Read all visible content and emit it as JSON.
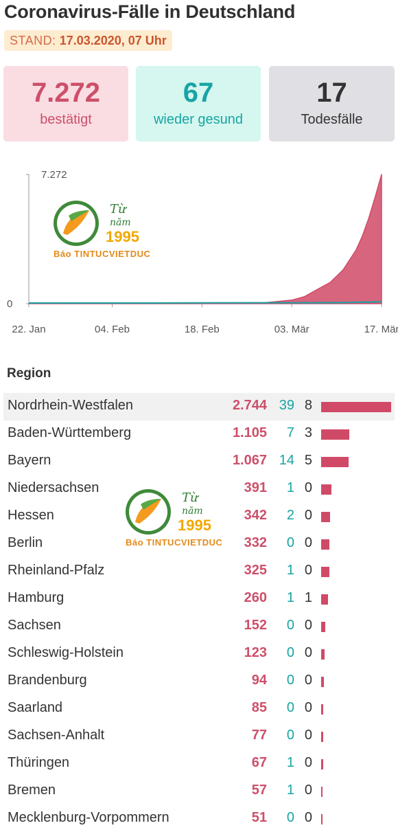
{
  "header": {
    "title": "Coronavirus-Fälle in Deutschland",
    "stand_label": "STAND:",
    "stand_value": "17.03.2020, 07 Uhr"
  },
  "cards": [
    {
      "value": "7.272",
      "label": "bestätigt"
    },
    {
      "value": "67",
      "label": "wieder gesund"
    },
    {
      "value": "17",
      "label": "Todesfälle"
    }
  ],
  "colors": {
    "confirmed": "#d04a67",
    "recovered": "#17a4a4",
    "deaths": "#333333"
  },
  "chart_data": {
    "type": "area",
    "xlabel": "",
    "ylabel": "",
    "x_ticks": [
      "22. Jan",
      "04. Feb",
      "18. Feb",
      "03. Mär",
      "17. Mär"
    ],
    "y_ticks": [
      "0",
      "7.272"
    ],
    "ylim": [
      0,
      7272
    ],
    "x": [
      "22. Jan",
      "28. Jan",
      "04. Feb",
      "11. Feb",
      "18. Feb",
      "25. Feb",
      "28. Feb",
      "01. Mär",
      "03. Mär",
      "05. Mär",
      "07. Mär",
      "09. Mär",
      "11. Mär",
      "13. Mär",
      "14. Mär",
      "15. Mär",
      "16. Mär",
      "17. Mär"
    ],
    "series": [
      {
        "name": "bestätigt",
        "values": [
          0,
          4,
          12,
          16,
          16,
          18,
          60,
          130,
          200,
          400,
          800,
          1200,
          1900,
          3000,
          3800,
          4800,
          6000,
          7272
        ]
      },
      {
        "name": "wieder gesund",
        "values": [
          0,
          0,
          0,
          0,
          10,
          14,
          15,
          16,
          16,
          16,
          16,
          18,
          20,
          40,
          46,
          50,
          60,
          67
        ]
      }
    ]
  },
  "table": {
    "header": "Region",
    "max_confirmed": 2744,
    "rows": [
      {
        "region": "Nordrhein-Westfalen",
        "confirmed": "2.744",
        "confirmed_num": 2744,
        "recovered": "39",
        "deaths": "8"
      },
      {
        "region": "Baden-Württemberg",
        "confirmed": "1.105",
        "confirmed_num": 1105,
        "recovered": "7",
        "deaths": "3"
      },
      {
        "region": "Bayern",
        "confirmed": "1.067",
        "confirmed_num": 1067,
        "recovered": "14",
        "deaths": "5"
      },
      {
        "region": "Niedersachsen",
        "confirmed": "391",
        "confirmed_num": 391,
        "recovered": "1",
        "deaths": "0"
      },
      {
        "region": "Hessen",
        "confirmed": "342",
        "confirmed_num": 342,
        "recovered": "2",
        "deaths": "0"
      },
      {
        "region": "Berlin",
        "confirmed": "332",
        "confirmed_num": 332,
        "recovered": "0",
        "deaths": "0"
      },
      {
        "region": "Rheinland-Pfalz",
        "confirmed": "325",
        "confirmed_num": 325,
        "recovered": "1",
        "deaths": "0"
      },
      {
        "region": "Hamburg",
        "confirmed": "260",
        "confirmed_num": 260,
        "recovered": "1",
        "deaths": "1"
      },
      {
        "region": "Sachsen",
        "confirmed": "152",
        "confirmed_num": 152,
        "recovered": "0",
        "deaths": "0"
      },
      {
        "region": "Schleswig-Holstein",
        "confirmed": "123",
        "confirmed_num": 123,
        "recovered": "0",
        "deaths": "0"
      },
      {
        "region": "Brandenburg",
        "confirmed": "94",
        "confirmed_num": 94,
        "recovered": "0",
        "deaths": "0"
      },
      {
        "region": "Saarland",
        "confirmed": "85",
        "confirmed_num": 85,
        "recovered": "0",
        "deaths": "0"
      },
      {
        "region": "Sachsen-Anhalt",
        "confirmed": "77",
        "confirmed_num": 77,
        "recovered": "0",
        "deaths": "0"
      },
      {
        "region": "Thüringen",
        "confirmed": "67",
        "confirmed_num": 67,
        "recovered": "1",
        "deaths": "0"
      },
      {
        "region": "Bremen",
        "confirmed": "57",
        "confirmed_num": 57,
        "recovered": "1",
        "deaths": "0"
      },
      {
        "region": "Mecklenburg-Vorpommern",
        "confirmed": "51",
        "confirmed_num": 51,
        "recovered": "0",
        "deaths": "0"
      }
    ]
  },
  "watermark": {
    "line1": "Từ",
    "line2": "năm",
    "year": "1995",
    "brand": "Báo TINTUCVIETDUC"
  }
}
